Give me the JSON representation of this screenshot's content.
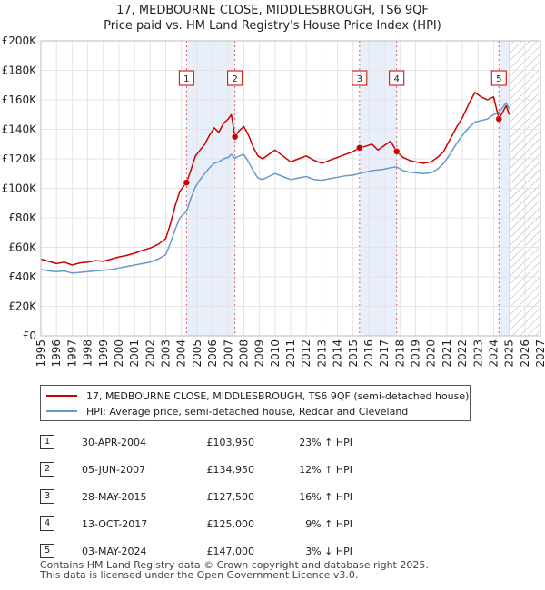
{
  "header": {
    "title": "17, MEDBOURNE CLOSE, MIDDLESBROUGH, TS6 9QF",
    "subtitle": "Price paid vs. HM Land Registry's House Price Index (HPI)"
  },
  "colors": {
    "property": "#cc0000",
    "hpi": "#6699cc",
    "sale_band": "#e8eefa",
    "future_hatch": "#999999"
  },
  "chart_data": {
    "type": "line",
    "x_range": [
      1995,
      2027
    ],
    "ylim": [
      0,
      200000
    ],
    "y_ticks": [
      {
        "value": 0,
        "label": "£0"
      },
      {
        "value": 20000,
        "label": "£20K"
      },
      {
        "value": 40000,
        "label": "£40K"
      },
      {
        "value": 60000,
        "label": "£60K"
      },
      {
        "value": 80000,
        "label": "£80K"
      },
      {
        "value": 100000,
        "label": "£100K"
      },
      {
        "value": 120000,
        "label": "£120K"
      },
      {
        "value": 140000,
        "label": "£140K"
      },
      {
        "value": 160000,
        "label": "£160K"
      },
      {
        "value": 180000,
        "label": "£180K"
      },
      {
        "value": 200000,
        "label": "£200K"
      }
    ],
    "x_ticks": [
      "1995",
      "1996",
      "1997",
      "1998",
      "1999",
      "2000",
      "2001",
      "2002",
      "2003",
      "2004",
      "2005",
      "2006",
      "2007",
      "2008",
      "2009",
      "2010",
      "2011",
      "2012",
      "2013",
      "2014",
      "2015",
      "2016",
      "2017",
      "2018",
      "2019",
      "2020",
      "2021",
      "2022",
      "2023",
      "2024",
      "2025",
      "2026",
      "2027"
    ],
    "forecast_from": 2025.0,
    "sale_bands": [
      [
        2004.33,
        2007.43
      ],
      [
        2015.41,
        2017.79
      ],
      [
        2024.34,
        2025.0
      ]
    ],
    "series": [
      {
        "name": "17, MEDBOURNE CLOSE, MIDDLESBROUGH, TS6 9QF (semi-detached house)",
        "x": [
          1995.0,
          1995.5,
          1996.0,
          1996.5,
          1997.0,
          1997.5,
          1998.0,
          1998.5,
          1999.0,
          1999.5,
          2000.0,
          2000.5,
          2001.0,
          2001.5,
          2002.0,
          2002.5,
          2003.0,
          2003.3,
          2003.6,
          2003.9,
          2004.33,
          2004.6,
          2004.9,
          2005.2,
          2005.5,
          2005.8,
          2006.1,
          2006.4,
          2006.7,
          2007.0,
          2007.2,
          2007.43,
          2007.7,
          2008.0,
          2008.3,
          2008.6,
          2008.9,
          2009.2,
          2009.6,
          2010.0,
          2010.5,
          2011.0,
          2011.5,
          2012.0,
          2012.5,
          2013.0,
          2013.5,
          2014.0,
          2014.5,
          2015.0,
          2015.41,
          2015.8,
          2016.2,
          2016.6,
          2017.0,
          2017.4,
          2017.79,
          2018.2,
          2018.6,
          2019.0,
          2019.5,
          2020.0,
          2020.4,
          2020.8,
          2021.2,
          2021.6,
          2022.0,
          2022.4,
          2022.8,
          2023.2,
          2023.6,
          2024.0,
          2024.34,
          2024.6,
          2024.8,
          2025.0
        ],
        "y": [
          52000,
          50500,
          49000,
          50000,
          48000,
          49500,
          50000,
          51000,
          50500,
          52000,
          53500,
          54500,
          56000,
          58000,
          59500,
          62000,
          66000,
          76000,
          88000,
          98000,
          103950,
          112000,
          122000,
          126000,
          130000,
          136000,
          141000,
          138000,
          144000,
          147000,
          150000,
          134950,
          139000,
          142000,
          136000,
          128000,
          122000,
          120000,
          123000,
          126000,
          122000,
          118000,
          120000,
          122000,
          119000,
          117000,
          119000,
          121000,
          123000,
          125000,
          127500,
          128500,
          130000,
          126000,
          129000,
          132000,
          125000,
          121000,
          119000,
          118000,
          117000,
          118000,
          121000,
          125000,
          133000,
          141000,
          148000,
          157000,
          165000,
          162000,
          160000,
          162000,
          147000,
          152000,
          156000,
          150000
        ]
      },
      {
        "name": "HPI: Average price, semi-detached house, Redcar and Cleveland",
        "x": [
          1995.0,
          1995.5,
          1996.0,
          1996.5,
          1997.0,
          1997.5,
          1998.0,
          1998.5,
          1999.0,
          1999.5,
          2000.0,
          2000.5,
          2001.0,
          2001.5,
          2002.0,
          2002.5,
          2003.0,
          2003.3,
          2003.6,
          2003.9,
          2004.33,
          2004.6,
          2004.9,
          2005.2,
          2005.5,
          2005.8,
          2006.1,
          2006.4,
          2006.7,
          2007.0,
          2007.2,
          2007.43,
          2007.7,
          2008.0,
          2008.3,
          2008.6,
          2008.9,
          2009.2,
          2009.6,
          2010.0,
          2010.5,
          2011.0,
          2011.5,
          2012.0,
          2012.5,
          2013.0,
          2013.5,
          2014.0,
          2014.5,
          2015.0,
          2015.41,
          2015.8,
          2016.2,
          2016.6,
          2017.0,
          2017.4,
          2017.79,
          2018.2,
          2018.6,
          2019.0,
          2019.5,
          2020.0,
          2020.4,
          2020.8,
          2021.2,
          2021.6,
          2022.0,
          2022.4,
          2022.8,
          2023.2,
          2023.6,
          2024.0,
          2024.34,
          2024.6,
          2024.8,
          2025.0
        ],
        "y": [
          45000,
          44000,
          43500,
          44000,
          42500,
          43000,
          43500,
          44000,
          44500,
          45000,
          46000,
          47000,
          48000,
          49000,
          50000,
          52000,
          55000,
          63000,
          72000,
          80000,
          84500,
          93000,
          101000,
          106000,
          110000,
          114000,
          117000,
          118000,
          120000,
          121000,
          123000,
          120500,
          122000,
          123000,
          118000,
          112000,
          107000,
          106000,
          108000,
          110000,
          108000,
          106000,
          107000,
          108000,
          106000,
          105500,
          106500,
          107500,
          108500,
          109000,
          110000,
          111000,
          112000,
          112500,
          113000,
          114000,
          114500,
          112000,
          111000,
          110500,
          110000,
          110500,
          113000,
          117000,
          123000,
          130000,
          136000,
          141000,
          145000,
          146000,
          147000,
          150000,
          151500,
          155000,
          158000,
          154000
        ]
      }
    ],
    "sales": [
      {
        "label": "1",
        "x": 2004.33,
        "y": 103950
      },
      {
        "label": "2",
        "x": 2007.43,
        "y": 134950
      },
      {
        "label": "3",
        "x": 2015.41,
        "y": 127500
      },
      {
        "label": "4",
        "x": 2017.79,
        "y": 125000
      },
      {
        "label": "5",
        "x": 2024.34,
        "y": 147000
      }
    ]
  },
  "legend": {
    "property_label": "17, MEDBOURNE CLOSE, MIDDLESBROUGH, TS6 9QF (semi-detached house)",
    "hpi_label": "HPI: Average price, semi-detached house, Redcar and Cleveland"
  },
  "transactions": [
    {
      "num": "1",
      "date": "30-APR-2004",
      "price": "£103,950",
      "hpi": "23% ↑ HPI"
    },
    {
      "num": "2",
      "date": "05-JUN-2007",
      "price": "£134,950",
      "hpi": "12% ↑ HPI"
    },
    {
      "num": "3",
      "date": "28-MAY-2015",
      "price": "£127,500",
      "hpi": "16% ↑ HPI"
    },
    {
      "num": "4",
      "date": "13-OCT-2017",
      "price": "£125,000",
      "hpi": "9% ↑ HPI"
    },
    {
      "num": "5",
      "date": "03-MAY-2024",
      "price": "£147,000",
      "hpi": "3% ↓ HPI"
    }
  ],
  "footer": {
    "line1": "Contains HM Land Registry data © Crown copyright and database right 2025.",
    "line2": "This data is licensed under the Open Government Licence v3.0."
  }
}
